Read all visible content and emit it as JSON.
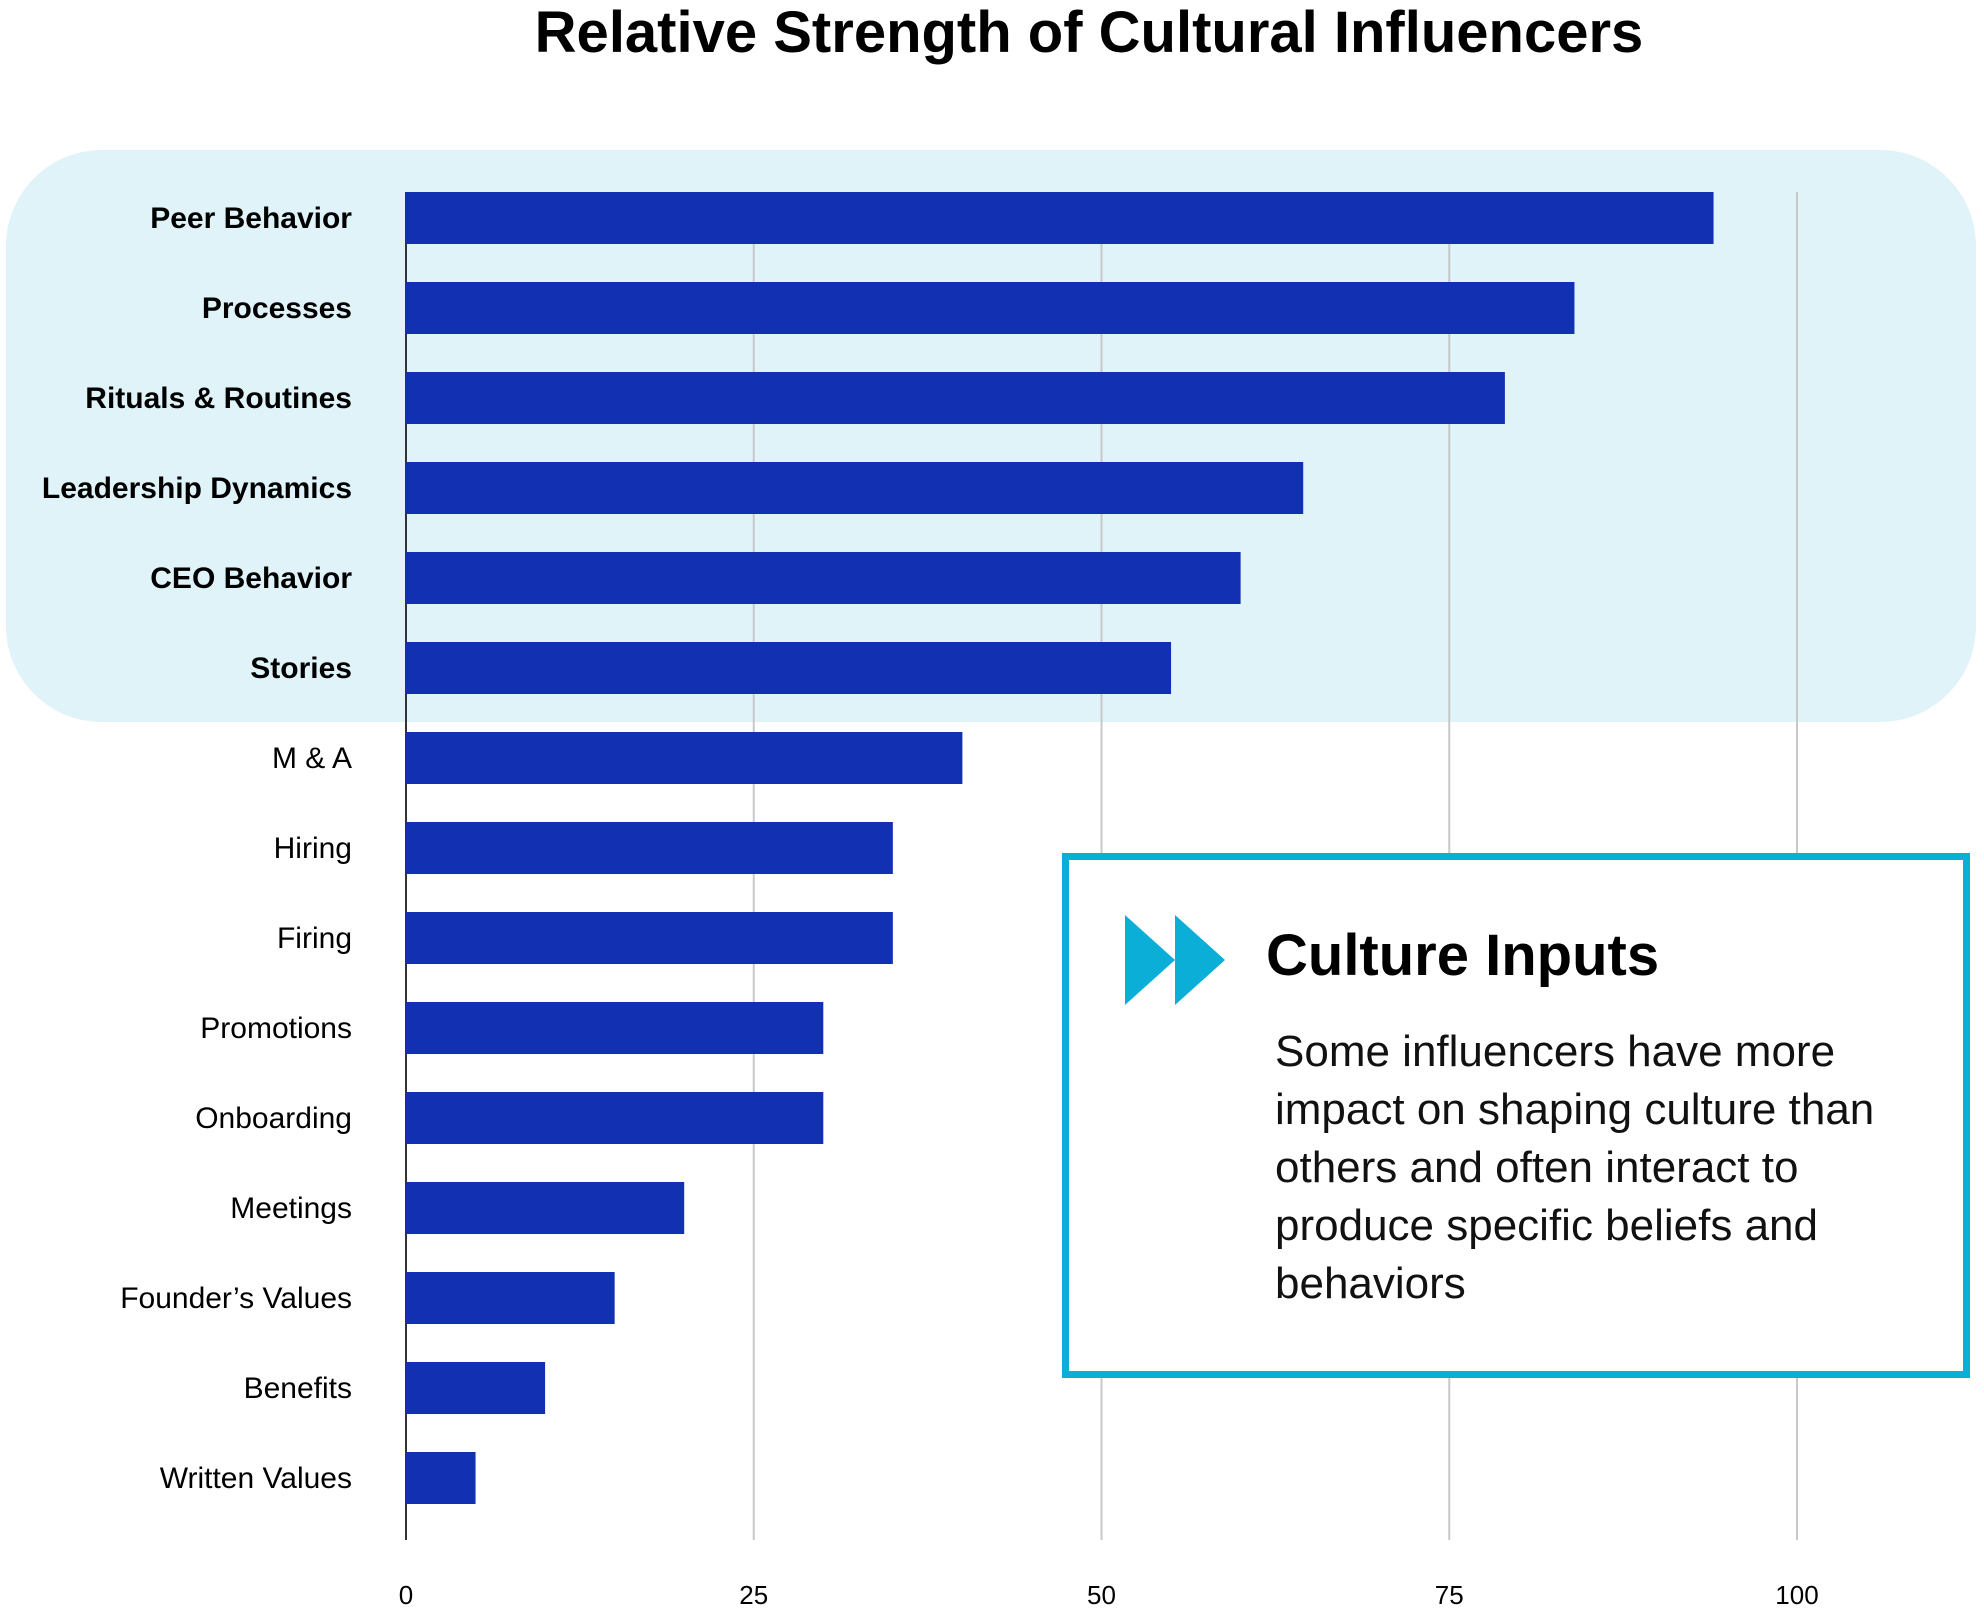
{
  "title": "Relative Strength of Cultural Influencers",
  "colors": {
    "bar": "#1230b2",
    "highlight_band": "#dff3f9",
    "grid": "#c8c8c8",
    "axis": "#333333",
    "callout_border": "#0aaed6",
    "callout_icon": "#0aaed6"
  },
  "chart_data": {
    "type": "bar",
    "orientation": "horizontal",
    "title": "Relative Strength of Cultural Influencers",
    "categories": [
      "Peer Behavior",
      "Processes",
      "Rituals & Routines",
      "Leadership Dynamics",
      "CEO Behavior",
      "Stories",
      "M & A",
      "Hiring",
      "Firing",
      "Promotions",
      "Onboarding",
      "Meetings",
      "Founder’s Values",
      "Benefits",
      "Written Values"
    ],
    "values": [
      94,
      84,
      79,
      64.5,
      60,
      55,
      40,
      35,
      35,
      30,
      30,
      20,
      15,
      10,
      5
    ],
    "highlighted_categories": [
      "Peer Behavior",
      "Processes",
      "Rituals & Routines",
      "Leadership Dynamics",
      "CEO Behavior",
      "Stories"
    ],
    "xticks": [
      "0",
      "25",
      "50",
      "75",
      "100"
    ],
    "xlim": [
      0,
      100
    ],
    "xlabel": "",
    "ylabel": "",
    "grid": true
  },
  "callout": {
    "icon": "fast-forward-icon",
    "heading": "Culture Inputs",
    "body": "Some influencers have more impact on shaping culture than others and often interact to produce specific beliefs and behaviors"
  }
}
